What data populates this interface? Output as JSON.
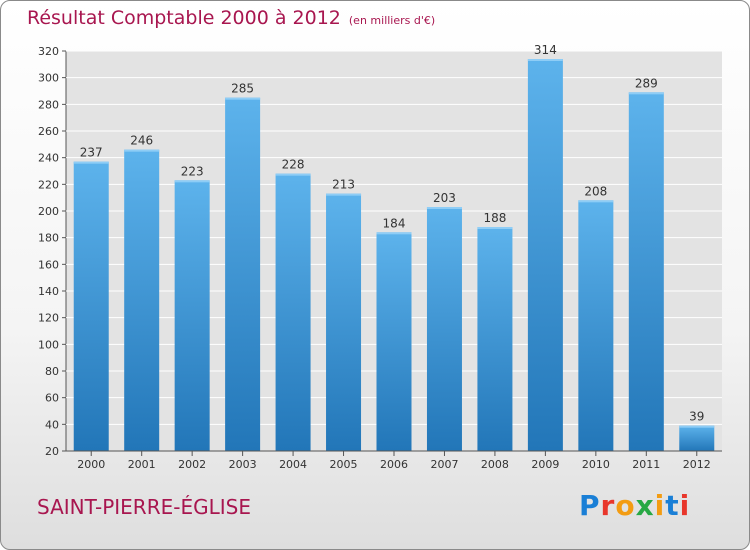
{
  "header": {
    "title": "Résultat Comptable 2000 à 2012",
    "subtitle": "(en milliers d'€)"
  },
  "footer": {
    "commune": "SAINT-PIERRE-ÉGLISE",
    "logo": "Proxiti"
  },
  "colors": {
    "title": "#a8164f",
    "bar_light": "#5db3ec",
    "bar_dark": "#2276b8",
    "plot_bg": "#e3e3e3",
    "logo_letters": [
      "#1a7fd6",
      "#e8362b",
      "#f39c12",
      "#27a844",
      "#f39c12",
      "#1a7fd6",
      "#e8362b"
    ]
  },
  "chart_data": {
    "type": "bar",
    "title": "Résultat Comptable 2000 à 2012",
    "subtitle": "(en milliers d'€)",
    "xlabel": "",
    "ylabel": "",
    "categories": [
      "2000",
      "2001",
      "2002",
      "2003",
      "2004",
      "2005",
      "2006",
      "2007",
      "2008",
      "2009",
      "2010",
      "2011",
      "2012"
    ],
    "values": [
      237,
      246,
      223,
      285,
      228,
      213,
      184,
      203,
      188,
      314,
      208,
      289,
      39
    ],
    "data_labels": [
      "237",
      "246",
      "223",
      "285",
      "228",
      "213",
      "184",
      "203",
      "188",
      "314",
      "208",
      "289",
      "39"
    ],
    "ylim": [
      20,
      320
    ],
    "yticks": [
      20,
      40,
      60,
      80,
      100,
      120,
      140,
      160,
      180,
      200,
      220,
      240,
      260,
      280,
      300,
      320
    ],
    "grid": true
  }
}
